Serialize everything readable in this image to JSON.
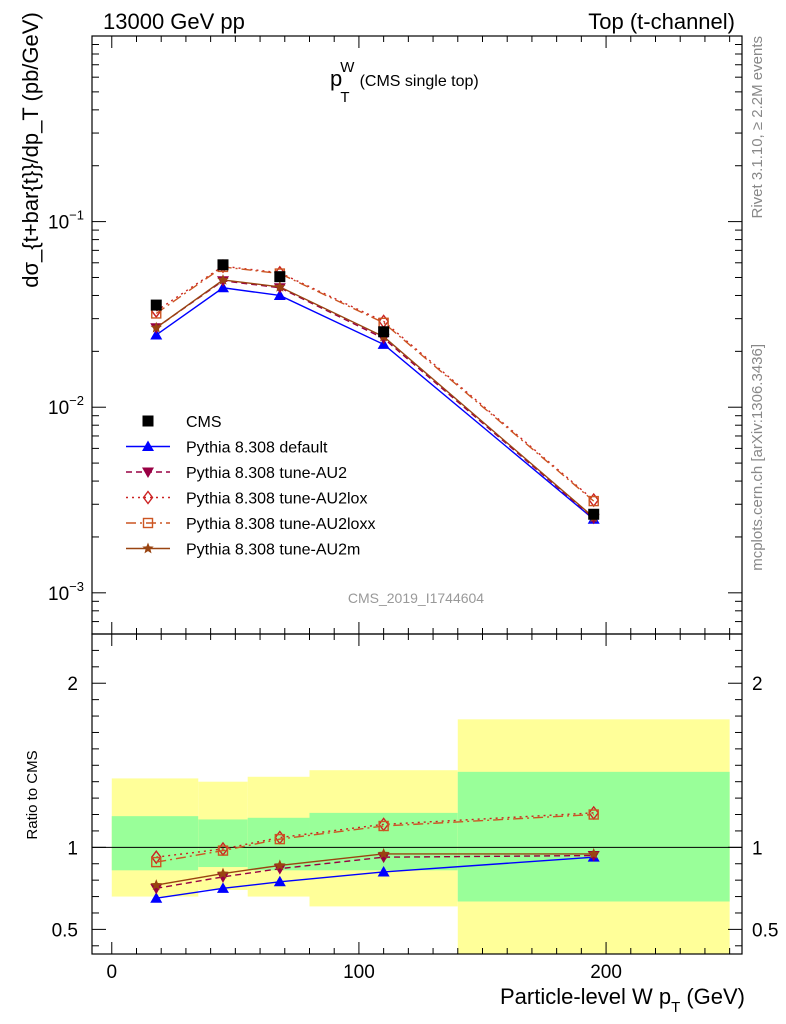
{
  "header": {
    "left": "13000 GeV pp",
    "right": "Top (t-channel)"
  },
  "side": {
    "rivet": "Rivet 3.1.10, ≥ 2.2M events",
    "mcplots": "mcplots.cern.ch [arXiv:1306.3436]"
  },
  "chart_data": {
    "type": "line",
    "title": "p_T^W (CMS single top)",
    "title_main": "p",
    "title_sup": "W",
    "title_sub": "T",
    "title_suffix": "(CMS single top)",
    "analysis_id": "CMS_2019_I1744604",
    "xlabel": "Particle-level W p_T (GeV)",
    "xlabel_main": "Particle-level W p",
    "xlabel_sub": "T",
    "xlabel_unit": "(GeV)",
    "ylabel": "dσ_{t+bar{t}}/dp_T (pb/GeV)",
    "ylabel_ratio": "Ratio to CMS",
    "xlim": [
      -8,
      255
    ],
    "ylim": [
      0.0006,
      1.0
    ],
    "ylim_ratio": [
      0.35,
      2.3
    ],
    "yscale": "log",
    "x_ticks": [
      0,
      100,
      200
    ],
    "x_tick_labels": [
      "0",
      "100",
      "200"
    ],
    "ratio_ticks": [
      0.5,
      1,
      2
    ],
    "ratio_tick_labels": [
      "0.5",
      "1",
      "2"
    ],
    "bins": [
      0,
      35,
      55,
      80,
      140,
      250
    ],
    "x": [
      18,
      45,
      68,
      110,
      195
    ],
    "data": {
      "name": "CMS",
      "values": [
        0.0355,
        0.0585,
        0.0505,
        0.0255,
        0.00265
      ],
      "band_stat": [
        [
          0.86,
          1.19
        ],
        [
          0.88,
          1.17
        ],
        [
          0.86,
          1.18
        ],
        [
          0.86,
          1.21
        ],
        [
          0.67,
          1.46
        ]
      ],
      "band_total": [
        [
          0.7,
          1.42
        ],
        [
          0.74,
          1.4
        ],
        [
          0.7,
          1.43
        ],
        [
          0.64,
          1.47
        ],
        [
          0.35,
          1.78
        ]
      ]
    },
    "series": [
      {
        "name": "Pythia 8.308 default",
        "color": "#0000ff",
        "marker": "triangle-up",
        "dash": "",
        "values": [
          0.0245,
          0.044,
          0.04,
          0.0218,
          0.00249
        ],
        "ratio": [
          0.69,
          0.75,
          0.79,
          0.85,
          0.94
        ]
      },
      {
        "name": "Pythia 8.308 tune-AU2",
        "color": "#990044",
        "marker": "triangle-down",
        "dash": "6,4",
        "values": [
          0.0268,
          0.048,
          0.044,
          0.0235,
          0.00252
        ],
        "ratio": [
          0.75,
          0.82,
          0.87,
          0.94,
          0.95
        ]
      },
      {
        "name": "Pythia 8.308 tune-AU2lox",
        "color": "#cc2222",
        "marker": "diamond-open",
        "dash": "2,4",
        "values": [
          0.033,
          0.0575,
          0.053,
          0.029,
          0.00316
        ],
        "ratio": [
          0.94,
          0.99,
          1.06,
          1.14,
          1.21
        ]
      },
      {
        "name": "Pythia 8.308 tune-AU2loxx",
        "color": "#cc5522",
        "marker": "square-open",
        "dash": "10,4,2,4",
        "values": [
          0.032,
          0.057,
          0.0525,
          0.0285,
          0.00312
        ],
        "ratio": [
          0.91,
          0.98,
          1.05,
          1.13,
          1.2
        ]
      },
      {
        "name": "Pythia 8.308 tune-AU2m",
        "color": "#994411",
        "marker": "star",
        "dash": "",
        "values": [
          0.0268,
          0.0485,
          0.0445,
          0.024,
          0.00255
        ],
        "ratio": [
          0.77,
          0.84,
          0.89,
          0.96,
          0.96
        ]
      }
    ]
  }
}
